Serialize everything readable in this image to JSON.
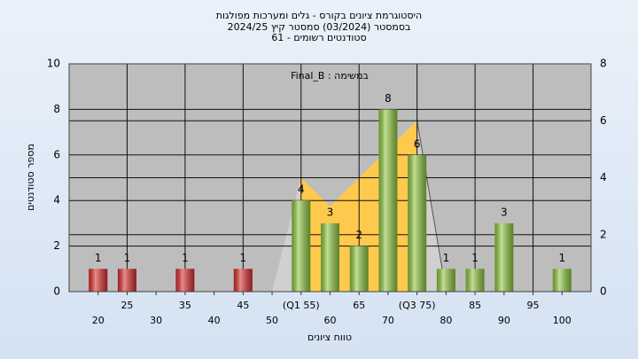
{
  "chart_data": {
    "type": "bar",
    "title": [
      "היסטוגרמת ציונים בקורס - גלים ומערכות מפולגות",
      "בסמסטר (03/2024) סמסטר קיץ 2024/25",
      "סטודנטים רשומים - 61"
    ],
    "annotation": "במשימה : Final_B",
    "y_label": "מספר סטודנטים",
    "x_label": "טווח ציונים",
    "x": [
      20,
      25,
      30,
      35,
      40,
      45,
      50,
      55,
      60,
      65,
      70,
      75,
      80,
      85,
      90,
      95,
      100
    ],
    "values": [
      1,
      1,
      null,
      1,
      null,
      1,
      null,
      4,
      3,
      2,
      8,
      6,
      1,
      1,
      3,
      null,
      1
    ],
    "colors": [
      "#d92b2b",
      "#d92b2b",
      "#d92b2b",
      "#d92b2b",
      "#d92b2b",
      "#d92b2b",
      "#d92b2b",
      "#8ec63f",
      "#8ec63f",
      "#8ec63f",
      "#8ec63f",
      "#8ec63f",
      "#8ec63f",
      "#8ec63f",
      "#8ec63f",
      "#8ec63f",
      "#8ec63f"
    ],
    "area": {
      "x": [
        50,
        55,
        60,
        75,
        80
      ],
      "values": [
        0,
        4,
        3,
        6,
        0
      ],
      "axis": "y2",
      "color": "#ffc94d"
    },
    "xlim": [
      15,
      105
    ],
    "xticks": [
      20,
      25,
      30,
      35,
      40,
      45,
      50,
      {
        "value": 55,
        "label": "(Q1 55)"
      },
      60,
      65,
      70,
      {
        "value": 75,
        "label": "(Q3 75)"
      },
      80,
      85,
      90,
      95,
      100
    ],
    "ylim": [
      0,
      10
    ],
    "yticks": [
      0,
      2,
      4,
      6,
      8,
      10
    ],
    "y2lim": [
      0,
      8
    ],
    "y2ticks": [
      0,
      2,
      4,
      6,
      8
    ],
    "grid": true
  }
}
